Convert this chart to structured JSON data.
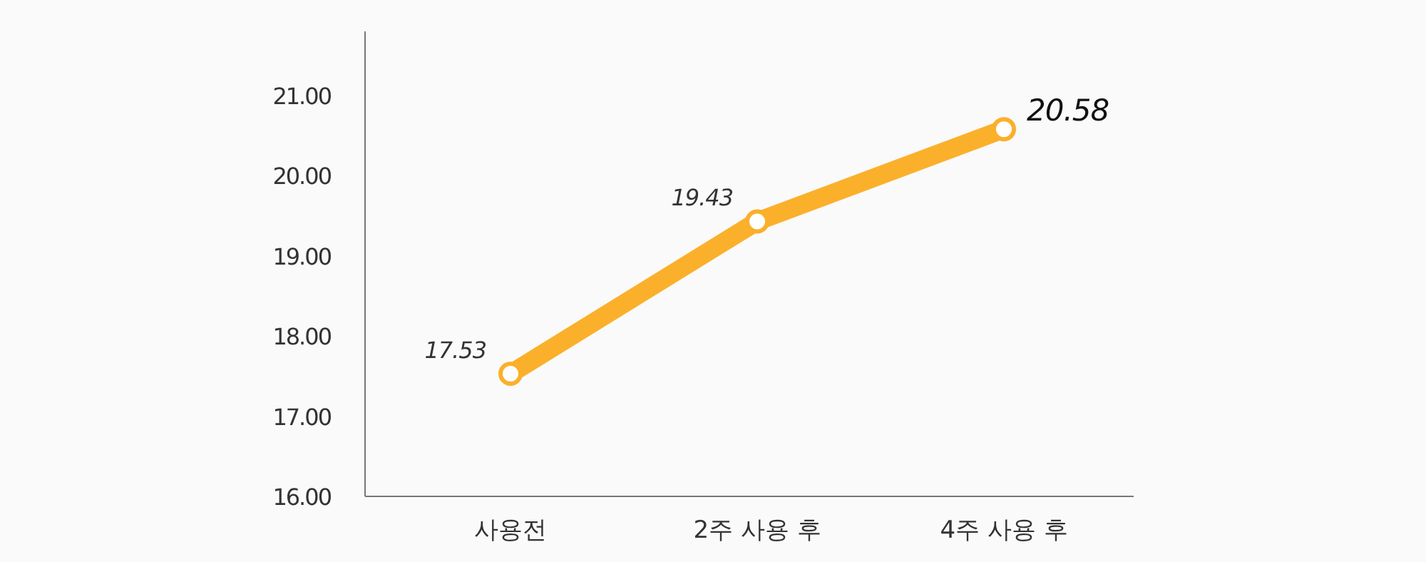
{
  "chart_data": {
    "type": "line",
    "categories": [
      "사용전",
      "2주 사용 후",
      "4주 사용 후"
    ],
    "series": [
      {
        "color": "#fbb02b",
        "values": [
          17.53,
          19.43,
          20.58
        ]
      }
    ],
    "ylim": [
      16,
      21.8
    ],
    "yticks": [
      {
        "value": 16,
        "label": "16.00"
      },
      {
        "value": 17,
        "label": "17.00"
      },
      {
        "value": 18,
        "label": "18.00"
      },
      {
        "value": 19,
        "label": "19.00"
      },
      {
        "value": 20,
        "label": "20.00"
      },
      {
        "value": 21,
        "label": "21.00"
      }
    ],
    "data_labels": true,
    "marker": "circle",
    "grid": false
  }
}
